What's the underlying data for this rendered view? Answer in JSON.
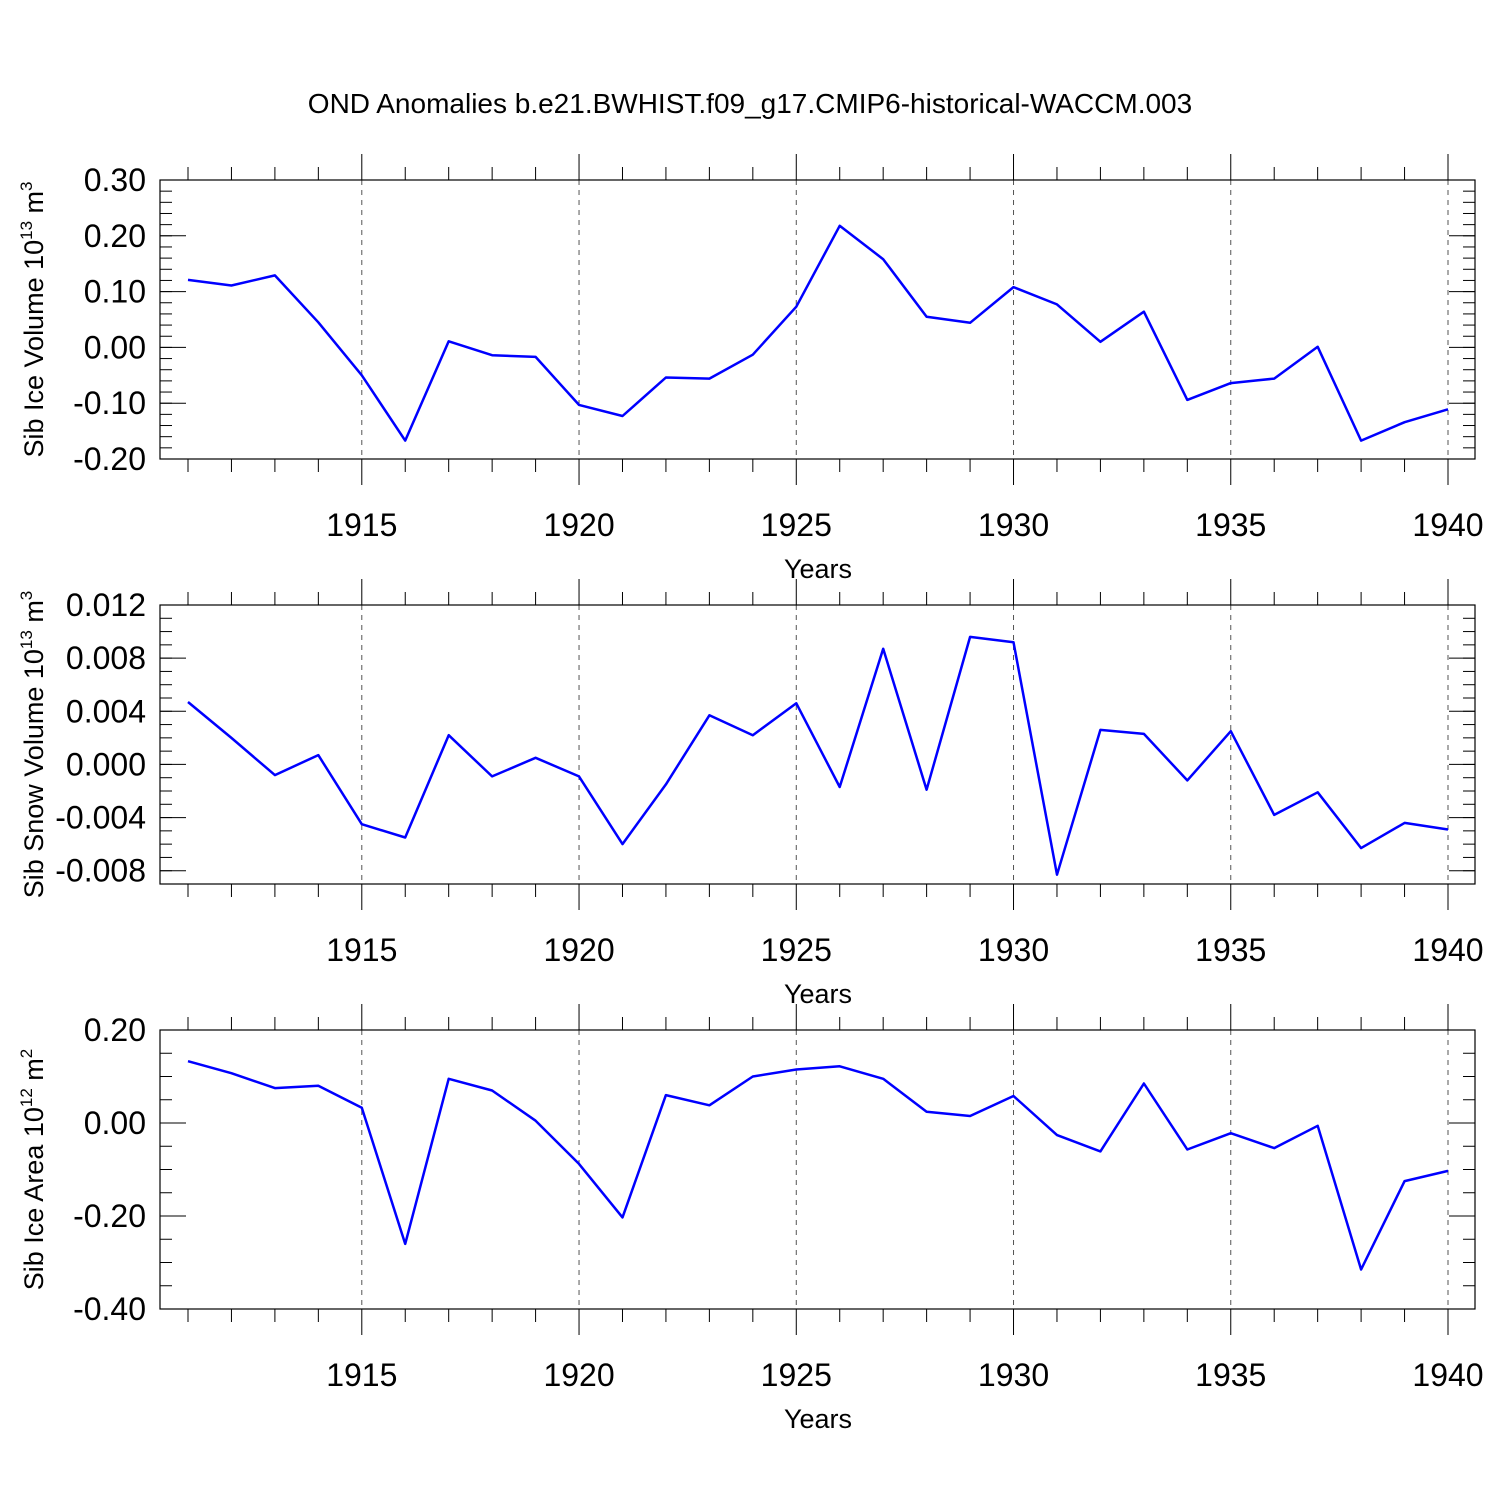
{
  "title": "OND Anomalies b.e21.BWHIST.f09_g17.CMIP6-historical-WACCM.003",
  "line_color": "#0000ff",
  "chart_data": [
    {
      "type": "line",
      "ylabel": {
        "text": "Sib Ice Volume 10",
        "exp1": "13",
        "unit": " m",
        "exp2": "3"
      },
      "xlabel": "Years",
      "xlim": [
        1911,
        1940
      ],
      "ylim": [
        -0.2,
        0.3
      ],
      "yticks": [
        -0.2,
        -0.1,
        0.0,
        0.1,
        0.2,
        0.3
      ],
      "ytick_labels": [
        "-0.20",
        "-0.10",
        "0.00",
        "0.10",
        "0.20",
        "0.30"
      ],
      "yminor_step": 0.02,
      "xticks": [
        1915,
        1920,
        1925,
        1930,
        1935,
        1940
      ],
      "xtick_labels": [
        "1915",
        "1920",
        "1925",
        "1930",
        "1935",
        "1940"
      ],
      "grid": "vertical dashed at labeled years",
      "x": [
        1911,
        1912,
        1913,
        1914,
        1915,
        1916,
        1917,
        1918,
        1919,
        1920,
        1921,
        1922,
        1923,
        1924,
        1925,
        1926,
        1927,
        1928,
        1929,
        1930,
        1931,
        1932,
        1933,
        1934,
        1935,
        1936,
        1937,
        1938,
        1939,
        1940
      ],
      "series": [
        {
          "values": [
            0.121,
            0.111,
            0.129,
            0.045,
            -0.05,
            -0.167,
            0.011,
            -0.014,
            -0.017,
            -0.103,
            -0.123,
            -0.054,
            -0.056,
            -0.013,
            0.073,
            0.218,
            0.158,
            0.055,
            0.044,
            0.108,
            0.077,
            0.01,
            0.064,
            -0.094,
            -0.064,
            -0.056,
            0.001,
            -0.167,
            -0.134,
            -0.111
          ]
        }
      ]
    },
    {
      "type": "line",
      "ylabel": {
        "text": "Sib Snow Volume 10",
        "exp1": "13",
        "unit": " m",
        "exp2": "3"
      },
      "xlabel": "Years",
      "xlim": [
        1911,
        1940
      ],
      "ylim": [
        -0.009,
        0.012
      ],
      "yticks": [
        -0.008,
        -0.004,
        0.0,
        0.004,
        0.008,
        0.012
      ],
      "ytick_labels": [
        "-0.008",
        "-0.004",
        "0.000",
        "0.004",
        "0.008",
        "0.012"
      ],
      "yminor_step": 0.001,
      "xticks": [
        1915,
        1920,
        1925,
        1930,
        1935,
        1940
      ],
      "xtick_labels": [
        "1915",
        "1920",
        "1925",
        "1930",
        "1935",
        "1940"
      ],
      "grid": "vertical dashed at labeled years",
      "x": [
        1911,
        1912,
        1913,
        1914,
        1915,
        1916,
        1917,
        1918,
        1919,
        1920,
        1921,
        1922,
        1923,
        1924,
        1925,
        1926,
        1927,
        1928,
        1929,
        1930,
        1931,
        1932,
        1933,
        1934,
        1935,
        1936,
        1937,
        1938,
        1939,
        1940
      ],
      "series": [
        {
          "values": [
            0.0047,
            0.002,
            -0.0008,
            0.0007,
            -0.0045,
            -0.0055,
            0.0022,
            -0.0009,
            0.0005,
            -0.0009,
            -0.006,
            -0.0015,
            0.0037,
            0.0022,
            0.0046,
            -0.0017,
            0.0087,
            -0.0019,
            0.0096,
            0.0092,
            -0.0083,
            0.0026,
            0.0023,
            -0.0012,
            0.0025,
            -0.0038,
            -0.0021,
            -0.0063,
            -0.0044,
            -0.0049
          ]
        }
      ]
    },
    {
      "type": "line",
      "ylabel": {
        "text": "Sib Ice Area 10",
        "exp1": "12",
        "unit": " m",
        "exp2": "2"
      },
      "xlabel": "Years",
      "xlim": [
        1911,
        1940
      ],
      "ylim": [
        -0.4,
        0.2
      ],
      "yticks": [
        -0.4,
        -0.2,
        0.0,
        0.2
      ],
      "ytick_labels": [
        "-0.40",
        "-0.20",
        "0.00",
        "0.20"
      ],
      "yminor_step": 0.05,
      "xticks": [
        1915,
        1920,
        1925,
        1930,
        1935,
        1940
      ],
      "xtick_labels": [
        "1915",
        "1920",
        "1925",
        "1930",
        "1935",
        "1940"
      ],
      "grid": "vertical dashed at labeled years",
      "x": [
        1911,
        1912,
        1913,
        1914,
        1915,
        1916,
        1917,
        1918,
        1919,
        1920,
        1921,
        1922,
        1923,
        1924,
        1925,
        1926,
        1927,
        1928,
        1929,
        1930,
        1931,
        1932,
        1933,
        1934,
        1935,
        1936,
        1937,
        1938,
        1939,
        1940
      ],
      "series": [
        {
          "values": [
            0.133,
            0.107,
            0.075,
            0.08,
            0.033,
            -0.26,
            0.095,
            0.07,
            0.005,
            -0.088,
            -0.203,
            0.06,
            0.038,
            0.1,
            0.115,
            0.122,
            0.095,
            0.024,
            0.015,
            0.058,
            -0.026,
            -0.061,
            0.085,
            -0.057,
            -0.022,
            -0.054,
            -0.006,
            -0.315,
            -0.125,
            -0.103
          ]
        }
      ]
    }
  ]
}
